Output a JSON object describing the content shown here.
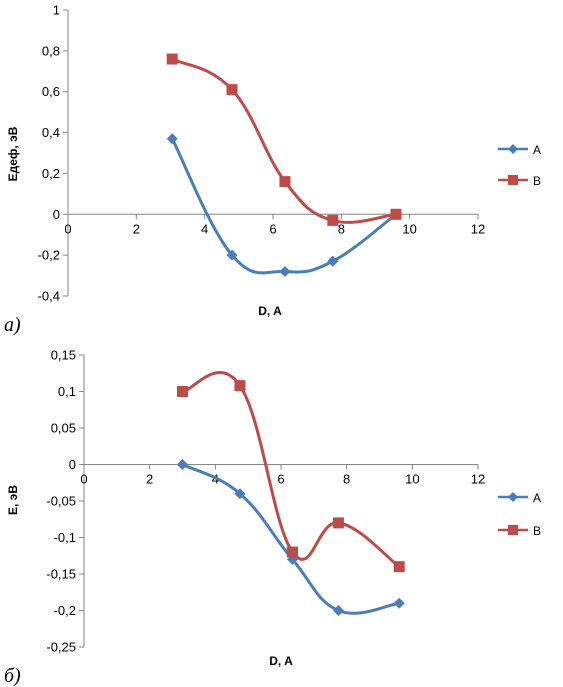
{
  "chart_data": [
    {
      "type": "line",
      "panel_label": "а)",
      "xlabel": "D, A",
      "ylabel": "Eдеф, эВ",
      "xlim": [
        0,
        12
      ],
      "ylim": [
        -0.4,
        1
      ],
      "x_ticks": [
        "0",
        "2",
        "4",
        "6",
        "8",
        "10",
        "12"
      ],
      "y_ticks": [
        "-0,4",
        "-0,2",
        "0",
        "0,2",
        "0,4",
        "0,6",
        "0,8",
        "1"
      ],
      "smooth": true,
      "grid": false,
      "legend_position": "right",
      "series": [
        {
          "name": "A",
          "color": "#4a7ebb",
          "marker": "diamond",
          "x": [
            3.05,
            4.8,
            6.35,
            7.75,
            9.6
          ],
          "y": [
            0.37,
            -0.2,
            -0.28,
            -0.23,
            0.0
          ]
        },
        {
          "name": "B",
          "color": "#be4b48",
          "marker": "square",
          "x": [
            3.05,
            4.8,
            6.35,
            7.75,
            9.6
          ],
          "y": [
            0.76,
            0.61,
            0.16,
            -0.03,
            0.0
          ]
        }
      ]
    },
    {
      "type": "line",
      "panel_label": "б)",
      "xlabel": "D, A",
      "ylabel": "E, эВ",
      "xlim": [
        0,
        12
      ],
      "ylim": [
        -0.25,
        0.15
      ],
      "x_ticks": [
        "0",
        "2",
        "4",
        "6",
        "8",
        "10",
        "12"
      ],
      "y_ticks": [
        "-0,25",
        "-0,2",
        "-0,15",
        "-0,1",
        "-0,05",
        "0",
        "0,05",
        "0,1",
        "0,15"
      ],
      "smooth": true,
      "grid": false,
      "legend_position": "right",
      "series": [
        {
          "name": "A",
          "color": "#4a7ebb",
          "marker": "diamond",
          "x": [
            3.0,
            4.75,
            6.35,
            7.75,
            9.6
          ],
          "y": [
            0.0,
            -0.04,
            -0.13,
            -0.2,
            -0.19
          ]
        },
        {
          "name": "B",
          "color": "#be4b48",
          "marker": "square",
          "x": [
            3.0,
            4.75,
            6.35,
            7.75,
            9.6
          ],
          "y": [
            0.1,
            0.108,
            -0.12,
            -0.08,
            -0.14
          ]
        }
      ]
    }
  ]
}
